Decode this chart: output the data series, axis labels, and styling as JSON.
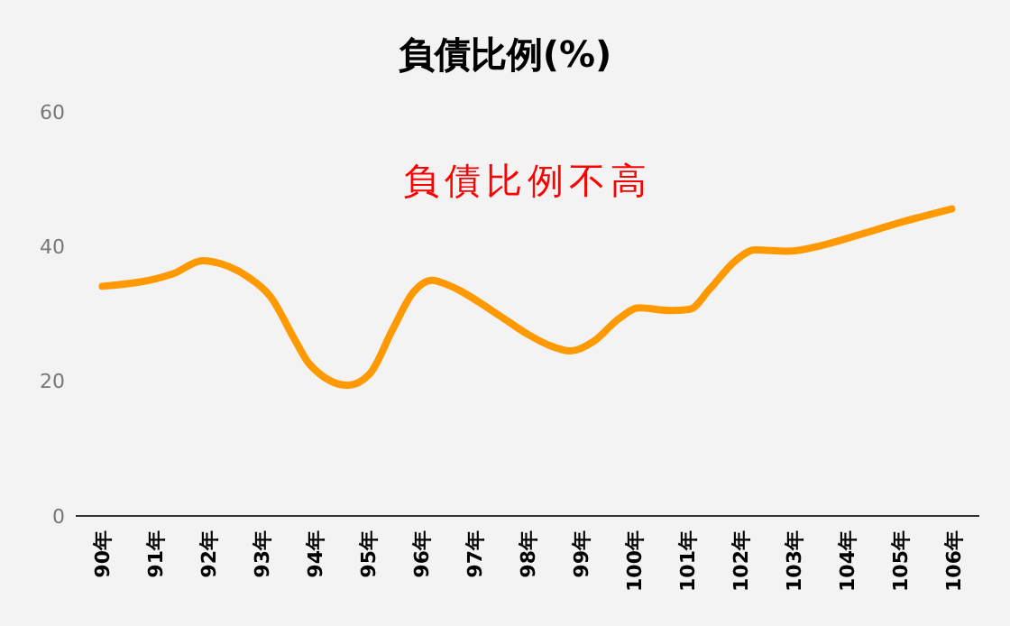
{
  "chart_data": {
    "type": "line",
    "title": "負債比例(%)",
    "annotations": [
      "負債比例不高"
    ],
    "x": [
      90,
      91.34,
      91.89,
      92.25,
      92.74,
      93.16,
      93.64,
      93.89,
      94.62,
      95.03,
      95.47,
      95.84,
      96.2,
      96.56,
      97.29,
      97.65,
      98.02,
      98.39,
      98.81,
      99.24,
      99.72,
      100.09,
      100.69,
      101.06,
      101.42,
      101.91,
      102.28,
      102.88,
      103.6,
      104.22,
      105.07,
      105.98
    ],
    "series": [
      {
        "color": "#ff9900",
        "values": [
          34.1,
          36.0,
          37.9,
          37.4,
          35.5,
          32.6,
          25.9,
          22.6,
          19.4,
          21.1,
          27.8,
          33.1,
          35.0,
          34.1,
          30.7,
          28.8,
          26.9,
          25.4,
          24.5,
          25.9,
          29.3,
          30.9,
          30.5,
          30.7,
          33.6,
          37.9,
          39.5,
          39.3,
          40.3,
          41.7,
          43.7,
          45.6
        ]
      }
    ],
    "xlim": [
      89.5,
      106.5
    ],
    "xticks": [
      {
        "value": 90,
        "label": "90年"
      },
      {
        "value": 91,
        "label": "91年"
      },
      {
        "value": 92,
        "label": "92年"
      },
      {
        "value": 93,
        "label": "93年"
      },
      {
        "value": 94,
        "label": "94年"
      },
      {
        "value": 95,
        "label": "95年"
      },
      {
        "value": 96,
        "label": "96年"
      },
      {
        "value": 97,
        "label": "97年"
      },
      {
        "value": 98,
        "label": "98年"
      },
      {
        "value": 99,
        "label": "99年"
      },
      {
        "value": 100,
        "label": "100年"
      },
      {
        "value": 101,
        "label": "101年"
      },
      {
        "value": 102,
        "label": "102年"
      },
      {
        "value": 103,
        "label": "103年"
      },
      {
        "value": 104,
        "label": "104年"
      },
      {
        "value": 105,
        "label": "105年"
      },
      {
        "value": 106,
        "label": "106年"
      }
    ],
    "ylim": [
      0,
      60
    ],
    "yticks": [
      0,
      20,
      40,
      60
    ],
    "grid": false
  }
}
